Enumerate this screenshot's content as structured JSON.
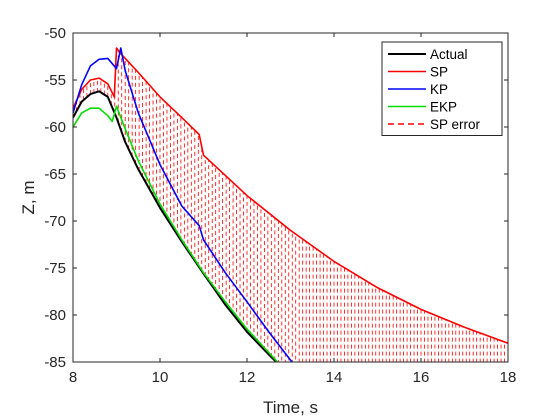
{
  "chart_data": {
    "type": "line",
    "title": "",
    "xlabel": "Time, s",
    "ylabel": "Z, m",
    "xlim": [
      8,
      18
    ],
    "ylim": [
      -85,
      -50
    ],
    "xticks": [
      "8",
      "10",
      "12",
      "14",
      "16",
      "18"
    ],
    "yticks": [
      "-50",
      "-55",
      "-60",
      "-65",
      "-70",
      "-75",
      "-80",
      "-85"
    ],
    "grid": false,
    "legend_position": "top-right",
    "series": [
      {
        "name": "Actual",
        "color": "#000000",
        "x": [
          8.0,
          8.2,
          8.4,
          8.6,
          8.8,
          9.0,
          9.2,
          9.5,
          10.0,
          10.5,
          11.0,
          11.5,
          12.0,
          12.5,
          13.0,
          13.2
        ],
        "y": [
          -59.0,
          -57.3,
          -56.5,
          -56.2,
          -56.8,
          -59.0,
          -61.6,
          -64.5,
          -68.6,
          -72.2,
          -75.6,
          -78.9,
          -81.8,
          -84.2,
          -86.5,
          -87.3
        ]
      },
      {
        "name": "SP",
        "color": "#ff0000",
        "x": [
          8.0,
          8.2,
          8.4,
          8.6,
          8.8,
          8.95,
          9.0,
          9.1,
          9.5,
          10.0,
          10.5,
          10.9,
          11.0,
          12.0,
          13.0,
          14.0,
          15.0,
          16.0,
          17.0,
          18.0
        ],
        "y": [
          -58.0,
          -56.0,
          -55.0,
          -54.8,
          -55.4,
          -56.8,
          -51.6,
          -52.2,
          -54.2,
          -56.8,
          -59.0,
          -60.8,
          -63.0,
          -67.3,
          -71.0,
          -74.3,
          -77.1,
          -79.4,
          -81.3,
          -83.0
        ]
      },
      {
        "name": "KP",
        "color": "#0000ff",
        "x": [
          8.0,
          8.2,
          8.4,
          8.6,
          8.8,
          9.0,
          9.1,
          9.2,
          9.5,
          10.0,
          10.5,
          10.9,
          11.0,
          11.5,
          12.0,
          12.5,
          13.0,
          13.2
        ],
        "y": [
          -58.5,
          -55.5,
          -53.5,
          -52.8,
          -52.7,
          -53.8,
          -51.6,
          -54.0,
          -58.5,
          -64.0,
          -68.4,
          -70.5,
          -72.0,
          -75.5,
          -78.6,
          -81.8,
          -84.8,
          -86.0
        ]
      },
      {
        "name": "EKP",
        "color": "#00dd00",
        "x": [
          8.0,
          8.2,
          8.4,
          8.6,
          8.8,
          8.9,
          9.0,
          9.2,
          9.5,
          10.0,
          10.5,
          11.0,
          11.5,
          12.0,
          12.5,
          13.0,
          13.2
        ],
        "y": [
          -60.0,
          -58.5,
          -58.0,
          -58.0,
          -58.8,
          -59.4,
          -57.8,
          -60.2,
          -63.6,
          -68.2,
          -72.0,
          -75.5,
          -78.6,
          -81.5,
          -84.0,
          -86.5,
          -87.4
        ]
      },
      {
        "name": "SP error",
        "color": "#ff0000",
        "dashed": true,
        "between": [
          "Actual",
          "SP"
        ]
      }
    ]
  }
}
